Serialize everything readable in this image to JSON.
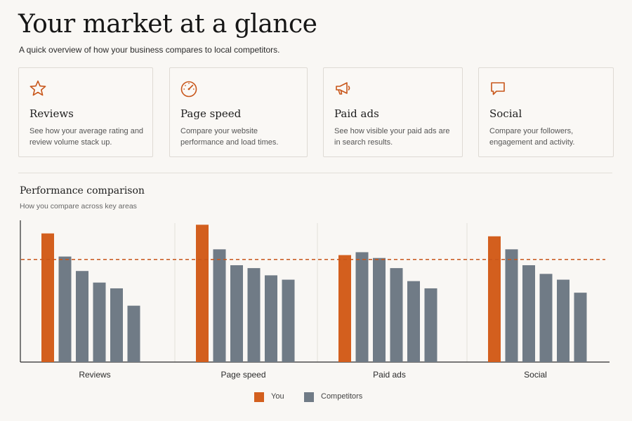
{
  "header": {
    "title": "Your market at a glance",
    "subtitle": "A quick overview of how your business compares to local competitors."
  },
  "cards": [
    {
      "icon": "star-icon",
      "title": "Reviews",
      "description": "See how your average rating and review volume stack up."
    },
    {
      "icon": "speedometer-icon",
      "title": "Page speed",
      "description": "Compare your website performance and load times."
    },
    {
      "icon": "megaphone-icon",
      "title": "Paid ads",
      "description": "See how visible your paid ads are in search results."
    },
    {
      "icon": "chat-bubble-icon",
      "title": "Social",
      "description": "Compare your followers, engagement and activity."
    }
  ],
  "section": {
    "title": "Performance comparison",
    "subtitle": "How you compare across key areas"
  },
  "colors": {
    "you": "#d35f1e",
    "competitors": "#707b86",
    "accent": "#c8561a"
  },
  "chart_data": {
    "type": "bar",
    "categories": [
      "Reviews",
      "Page speed",
      "Paid ads",
      "Social"
    ],
    "series_per_group": [
      {
        "label": "You",
        "values": [
          89,
          95,
          74,
          87
        ]
      },
      {
        "label": "Competitors",
        "values": [
          [
            73,
            63,
            55,
            51,
            39
          ],
          [
            78,
            67,
            65,
            60,
            57
          ],
          [
            76,
            72,
            65,
            56,
            51
          ],
          [
            78,
            67,
            61,
            57,
            48
          ]
        ]
      }
    ],
    "reference_line": {
      "value": 71,
      "style": "dashed"
    },
    "ylim": [
      0,
      100
    ],
    "grid": "vertical-separators",
    "legend": {
      "placement": "bottom-center",
      "entries": [
        "You",
        "Competitors"
      ]
    }
  }
}
